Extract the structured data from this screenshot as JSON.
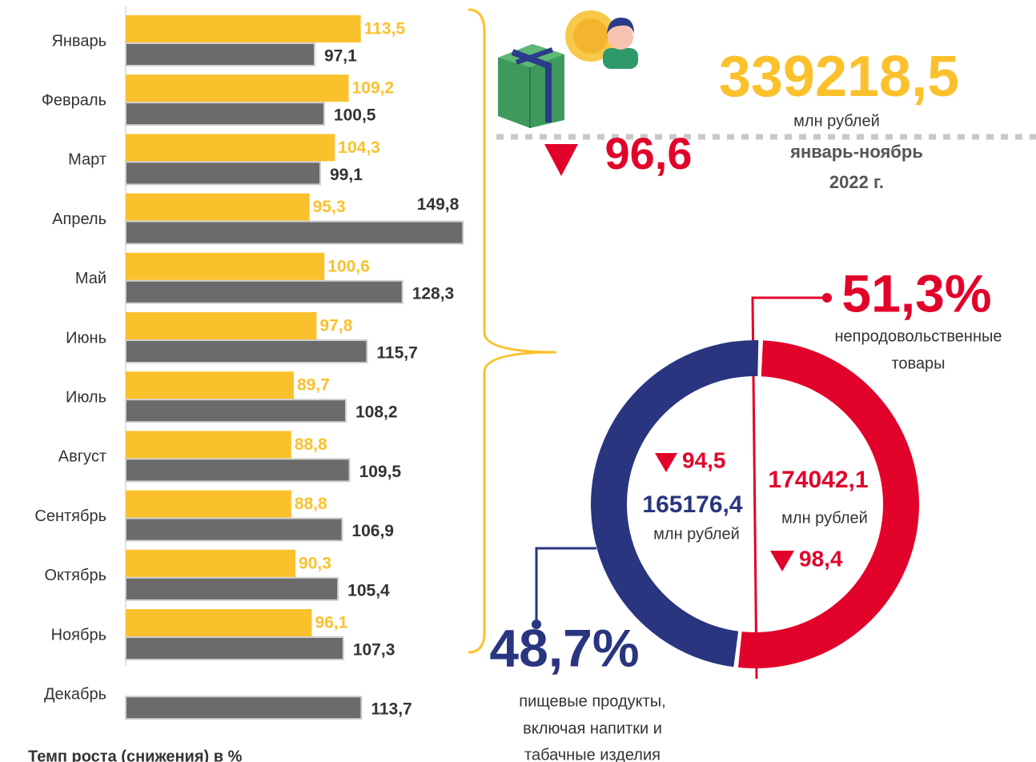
{
  "chart_data": [
    {
      "type": "bar",
      "orientation": "horizontal",
      "categories": [
        "Январь",
        "Февраль",
        "Март",
        "Апрель",
        "Май",
        "Июнь",
        "Июль",
        "Август",
        "Сентябрь",
        "Октябрь",
        "Ноябрь",
        "Декабрь"
      ],
      "series": [
        {
          "color": "#fbc12d",
          "values": [
            113.5,
            109.2,
            104.3,
            95.3,
            100.6,
            97.8,
            89.7,
            88.8,
            88.8,
            90.3,
            96.1,
            null
          ],
          "value_labels": [
            "113,5",
            "109,2",
            "104,3",
            "95,3",
            "100,6",
            "97,8",
            "89,7",
            "88,8",
            "88,8",
            "90,3",
            "96,1",
            null
          ]
        },
        {
          "color": "#6b6b6b",
          "values": [
            97.1,
            100.5,
            99.1,
            149.8,
            128.3,
            115.7,
            108.2,
            109.5,
            106.9,
            105.4,
            107.3,
            113.7
          ],
          "value_labels": [
            "97,1",
            "100,5",
            "99,1",
            "149,8",
            "128,3",
            "115,7",
            "108,2",
            "109,5",
            "106,9",
            "105,4",
            "107,3",
            "113,7"
          ]
        }
      ],
      "xlim": [
        30,
        150
      ],
      "footnote": "Темп роста (снижения) в %"
    },
    {
      "type": "donut",
      "values": [
        48.7,
        51.3
      ],
      "value_labels": [
        "48,7%",
        "51,3%"
      ],
      "colors": [
        "#29357f",
        "#e2032a"
      ],
      "labels": [
        [
          "пищевые продукты,",
          "включая напитки и",
          "табачные изделия"
        ],
        [
          "непродовольственные",
          "товары"
        ]
      ],
      "amounts": [
        "165176,4",
        "174042,1"
      ],
      "growth": [
        "94,5",
        "98,4"
      ],
      "unit": "млн рублей"
    }
  ],
  "summary": {
    "total": "339218,5",
    "unit": "млн рублей",
    "growth": "96,6",
    "period": [
      "январь-ноябрь",
      "2022 г."
    ]
  }
}
